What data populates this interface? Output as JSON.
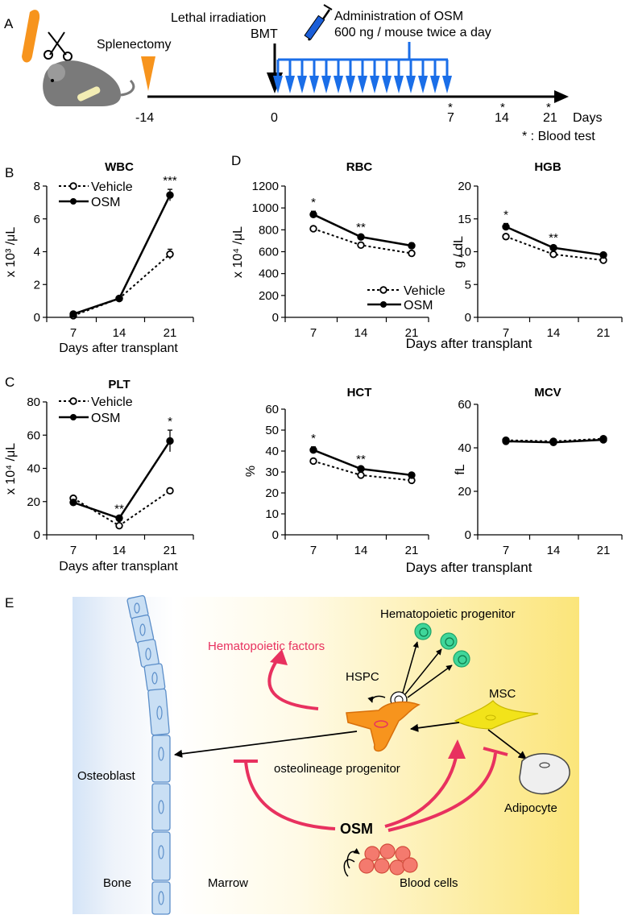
{
  "panel_labels": {
    "a": "A",
    "b": "B",
    "c": "C",
    "d": "D",
    "e": "E"
  },
  "timeline": {
    "splenectomy": "Splenectomy",
    "irradiation": "Lethal irradiation",
    "bmt": "BMT",
    "admin_line1": "Administration of OSM",
    "admin_line2": "600 ng / mouse twice a day",
    "ticks": [
      "-14",
      "0",
      "7",
      "14",
      "21"
    ],
    "days": "Days",
    "blood_star": "*",
    "blood_test": "* : Blood test",
    "colors": {
      "splenectomy": "#F7941D",
      "osm": "#1A6EE8",
      "axis": "#000000"
    }
  },
  "common": {
    "xlabel": "Days after transplant",
    "legend": [
      "Vehicle",
      "OSM"
    ],
    "categories": [
      "7",
      "14",
      "21"
    ]
  },
  "chart_data": [
    {
      "id": "wbc",
      "type": "line",
      "title": "WBC",
      "ylabel": "x 10³ /μL",
      "categories": [
        "7",
        "14",
        "21"
      ],
      "ylim": [
        0,
        8
      ],
      "yticks": [
        0,
        2,
        4,
        6,
        8
      ],
      "series": [
        {
          "name": "Vehicle",
          "values": [
            0.1,
            1.15,
            3.85
          ],
          "errors": [
            0.05,
            0.05,
            0.3
          ]
        },
        {
          "name": "OSM",
          "values": [
            0.2,
            1.15,
            7.45
          ],
          "errors": [
            0.05,
            0.05,
            0.35
          ]
        }
      ],
      "annotations": [
        {
          "category": "21",
          "text": "***"
        }
      ]
    },
    {
      "id": "plt",
      "type": "line",
      "title": "PLT",
      "ylabel": "x 10⁴ /μL",
      "categories": [
        "7",
        "14",
        "21"
      ],
      "ylim": [
        0,
        80
      ],
      "yticks": [
        0,
        20,
        40,
        60,
        80
      ],
      "series": [
        {
          "name": "Vehicle",
          "values": [
            22,
            5.5,
            26.5
          ],
          "errors": [
            0.5,
            0.5,
            1.5
          ]
        },
        {
          "name": "OSM",
          "values": [
            19.5,
            10,
            56.5
          ],
          "errors": [
            0.5,
            0.5,
            6.5
          ]
        }
      ],
      "annotations": [
        {
          "category": "14",
          "text": "**"
        },
        {
          "category": "21",
          "text": "*"
        }
      ]
    },
    {
      "id": "rbc",
      "type": "line",
      "title": "RBC",
      "ylabel": "x 10⁴ /μL",
      "categories": [
        "7",
        "14",
        "21"
      ],
      "ylim": [
        0,
        1200
      ],
      "yticks": [
        0,
        200,
        400,
        600,
        800,
        1000,
        1200
      ],
      "series": [
        {
          "name": "Vehicle",
          "values": [
            810,
            660,
            585
          ],
          "errors": [
            15,
            10,
            15
          ]
        },
        {
          "name": "OSM",
          "values": [
            940,
            735,
            655
          ],
          "errors": [
            30,
            10,
            25
          ]
        }
      ],
      "annotations": [
        {
          "category": "7",
          "text": "*"
        },
        {
          "category": "14",
          "text": "**"
        }
      ]
    },
    {
      "id": "hgb",
      "type": "line",
      "title": "HGB",
      "ylabel": "g / dL",
      "categories": [
        "7",
        "14",
        "21"
      ],
      "ylim": [
        0,
        20
      ],
      "yticks": [
        0,
        5,
        10,
        15,
        20
      ],
      "series": [
        {
          "name": "Vehicle",
          "values": [
            12.3,
            9.6,
            8.7
          ],
          "errors": [
            0.3,
            0.2,
            0.2
          ]
        },
        {
          "name": "OSM",
          "values": [
            13.8,
            10.6,
            9.5
          ],
          "errors": [
            0.5,
            0.2,
            0.3
          ]
        }
      ],
      "annotations": [
        {
          "category": "7",
          "text": "*"
        },
        {
          "category": "14",
          "text": "**"
        }
      ]
    },
    {
      "id": "hct",
      "type": "line",
      "title": "HCT",
      "ylabel": "%",
      "categories": [
        "7",
        "14",
        "21"
      ],
      "ylim": [
        0,
        60
      ],
      "yticks": [
        0,
        10,
        20,
        30,
        40,
        50,
        60
      ],
      "series": [
        {
          "name": "Vehicle",
          "values": [
            35.2,
            28.5,
            26
          ],
          "errors": [
            0.5,
            0.5,
            0.8
          ]
        },
        {
          "name": "OSM",
          "values": [
            40.5,
            31.5,
            28.5
          ],
          "errors": [
            1.5,
            0.5,
            1
          ]
        }
      ],
      "annotations": [
        {
          "category": "7",
          "text": "*"
        },
        {
          "category": "14",
          "text": "**"
        }
      ]
    },
    {
      "id": "mcv",
      "type": "line",
      "title": "MCV",
      "ylabel": "fL",
      "categories": [
        "7",
        "14",
        "21"
      ],
      "ylim": [
        0,
        60
      ],
      "yticks": [
        0,
        20,
        40,
        60
      ],
      "series": [
        {
          "name": "Vehicle",
          "values": [
            43.5,
            43,
            44.2
          ],
          "errors": [
            0.3,
            0.3,
            0.3
          ]
        },
        {
          "name": "OSM",
          "values": [
            43,
            42.5,
            43.7
          ],
          "errors": [
            0.3,
            0.3,
            0.3
          ]
        }
      ],
      "annotations": []
    }
  ],
  "schematic": {
    "bone": "Bone",
    "marrow": "Marrow",
    "osteoblast": "Osteoblast",
    "hematopoietic_factors": "Hematopoietic factors",
    "hematopoietic_progenitor": "Hematopoietic progenitor",
    "hspc": "HSPC",
    "msc": "MSC",
    "osteolineage": "osteolineage progenitor",
    "adipocyte": "Adipocyte",
    "osm": "OSM",
    "blood_cells": "Blood cells",
    "colors": {
      "activation": "#E8315F",
      "osteo_cell": "#F7941D",
      "msc_cell": "#F2E31A",
      "progenitor": "#3FD69A",
      "blood_cell": "#F47A6E",
      "bone_cell": "#C9DFF4",
      "bone_edge": "#5B8EC9"
    }
  }
}
